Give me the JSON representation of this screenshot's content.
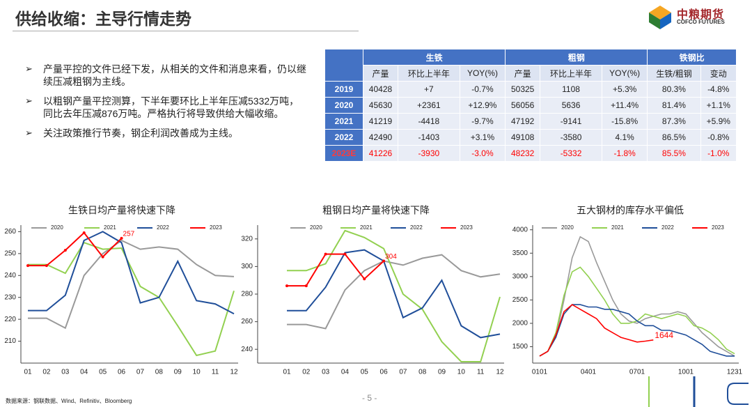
{
  "header": {
    "title": "供给收缩：主导行情走势",
    "logo": "中粮期货",
    "logo_en": "COFCO FUTURES"
  },
  "bullets": [
    "产量平控的文件已经下发，从相关的文件和消息来看，仍以继续压减粗钢为主线。",
    "以粗钢产量平控测算，下半年要环比上半年压减5332万吨，同比去年压减876万吨。严格执行将导致供给大幅收缩。",
    "关注政策推行节奏，钢企利润改善成为主线。"
  ],
  "table": {
    "groups": [
      "生铁",
      "粗钢",
      "铁钢比"
    ],
    "columns": [
      [
        "产量",
        "环比上半年",
        "YOY(%)"
      ],
      [
        "产量",
        "环比上半年",
        "YOY(%)"
      ],
      [
        "生铁/粗钢",
        "变动"
      ]
    ],
    "rows": [
      [
        "2019",
        "40428",
        "+7",
        "-0.7%",
        "50325",
        "1108",
        "+5.3%",
        "80.3%",
        "-4.8%"
      ],
      [
        "2020",
        "45630",
        "+2361",
        "+12.9%",
        "56056",
        "5636",
        "+11.4%",
        "81.4%",
        "+1.1%"
      ],
      [
        "2021",
        "41219",
        "-4418",
        "-9.7%",
        "47192",
        "-9141",
        "-15.8%",
        "87.3%",
        "+5.9%"
      ],
      [
        "2022",
        "42490",
        "-1403",
        "+3.1%",
        "49108",
        "-3580",
        "4.1%",
        "86.5%",
        "-0.8%"
      ],
      [
        "2023E",
        "41226",
        "-3930",
        "-3.0%",
        "48232",
        "-5332",
        "-1.8%",
        "85.5%",
        "-1.0%"
      ]
    ]
  },
  "chart_data": [
    {
      "type": "line",
      "title": "生铁日均产量将快速下降",
      "categories": [
        "01",
        "02",
        "03",
        "04",
        "05",
        "06",
        "07",
        "08",
        "09",
        "10",
        "11",
        "12"
      ],
      "ylim": [
        200,
        263
      ],
      "yticks": [
        210,
        220,
        230,
        240,
        250,
        260
      ],
      "series": [
        {
          "name": "2020",
          "color": "#999999",
          "values": [
            220.5,
            220.5,
            216,
            240,
            250,
            256,
            252,
            253,
            252,
            245,
            240,
            239.5
          ]
        },
        {
          "name": "2021",
          "color": "#92d050",
          "values": [
            245,
            245,
            241,
            255,
            252,
            252.5,
            235,
            230,
            217,
            203.5,
            205.5,
            233
          ]
        },
        {
          "name": "2022",
          "color": "#1f4e99",
          "values": [
            224,
            224,
            231,
            256,
            260,
            255,
            227.5,
            230,
            246.5,
            228.5,
            227,
            222.5
          ]
        },
        {
          "name": "2023",
          "color": "#ff0000",
          "values": [
            244.5,
            244.5,
            251.5,
            259.5,
            248.5,
            257,
            null,
            null,
            null,
            null,
            null,
            null
          ]
        }
      ]
    },
    {
      "type": "line",
      "title": "粗钢日均产量将快速下降",
      "categories": [
        "01",
        "02",
        "03",
        "04",
        "05",
        "06",
        "07",
        "08",
        "09",
        "10",
        "11",
        "12"
      ],
      "ylim": [
        230,
        330
      ],
      "yticks": [
        240,
        260,
        280,
        300,
        320
      ],
      "series": [
        {
          "name": "2020",
          "color": "#999999",
          "values": [
            258,
            258,
            255,
            283,
            297,
            304,
            301,
            306,
            308.5,
            297,
            292.5,
            294.5
          ]
        },
        {
          "name": "2021",
          "color": "#92d050",
          "values": [
            297,
            297,
            302,
            326,
            321,
            313,
            280,
            269,
            245.5,
            231,
            231,
            278
          ]
        },
        {
          "name": "2022",
          "color": "#1f4e99",
          "values": [
            268,
            268,
            285,
            310,
            312,
            304,
            263,
            270,
            290,
            257,
            248.5,
            251
          ]
        },
        {
          "name": "2023",
          "color": "#ff0000",
          "values": [
            286,
            286,
            309,
            309,
            291,
            304,
            null,
            null,
            null,
            null,
            null,
            null
          ]
        }
      ]
    },
    {
      "type": "line",
      "title": "五大钢材的库存水平偏低",
      "categories": [
        "0101",
        null,
        null,
        null,
        null,
        null,
        "0401",
        null,
        null,
        null,
        null,
        null,
        "0701",
        null,
        null,
        null,
        null,
        null,
        "1001",
        null,
        null,
        null,
        null,
        null,
        "1231"
      ],
      "ylim": [
        1150,
        4100
      ],
      "yticks": [
        1500,
        2000,
        2500,
        3000,
        3500,
        4000
      ],
      "series": [
        {
          "name": "2020",
          "color": "#999999",
          "values": [
            1300,
            1400,
            1700,
            2500,
            3400,
            3850,
            3750,
            3300,
            2900,
            2500,
            2200,
            2050,
            2000,
            2100,
            2150,
            2200,
            2200,
            2250,
            2200,
            2000,
            1800,
            1650,
            1500,
            1400,
            1300
          ]
        },
        {
          "name": "2021",
          "color": "#92d050",
          "values": [
            1300,
            1400,
            1800,
            2600,
            3100,
            3200,
            3000,
            2750,
            2500,
            2200,
            2000,
            2000,
            2050,
            2200,
            2150,
            2100,
            2150,
            2200,
            2150,
            1950,
            1900,
            1800,
            1650,
            1450,
            1350
          ]
        },
        {
          "name": "2022",
          "color": "#1f4e99",
          "values": [
            1300,
            1400,
            1700,
            2200,
            2400,
            2400,
            2350,
            2350,
            2300,
            2300,
            2250,
            2200,
            2050,
            1950,
            1950,
            1850,
            1850,
            1800,
            1750,
            1650,
            1550,
            1400,
            1350,
            1300,
            1300
          ]
        },
        {
          "name": "2023",
          "color": "#ff0000",
          "values": [
            1300,
            1400,
            1750,
            2250,
            2400,
            2300,
            2200,
            2100,
            1900,
            1800,
            1700,
            1650,
            1600,
            1620,
            1644,
            null,
            null,
            null,
            null,
            null,
            null,
            null,
            null,
            null,
            null
          ]
        }
      ]
    }
  ],
  "footer": {
    "source": "数据来源：钢联数据、Wind、Refinitiv、Bloomberg",
    "page": "- 5 -"
  }
}
